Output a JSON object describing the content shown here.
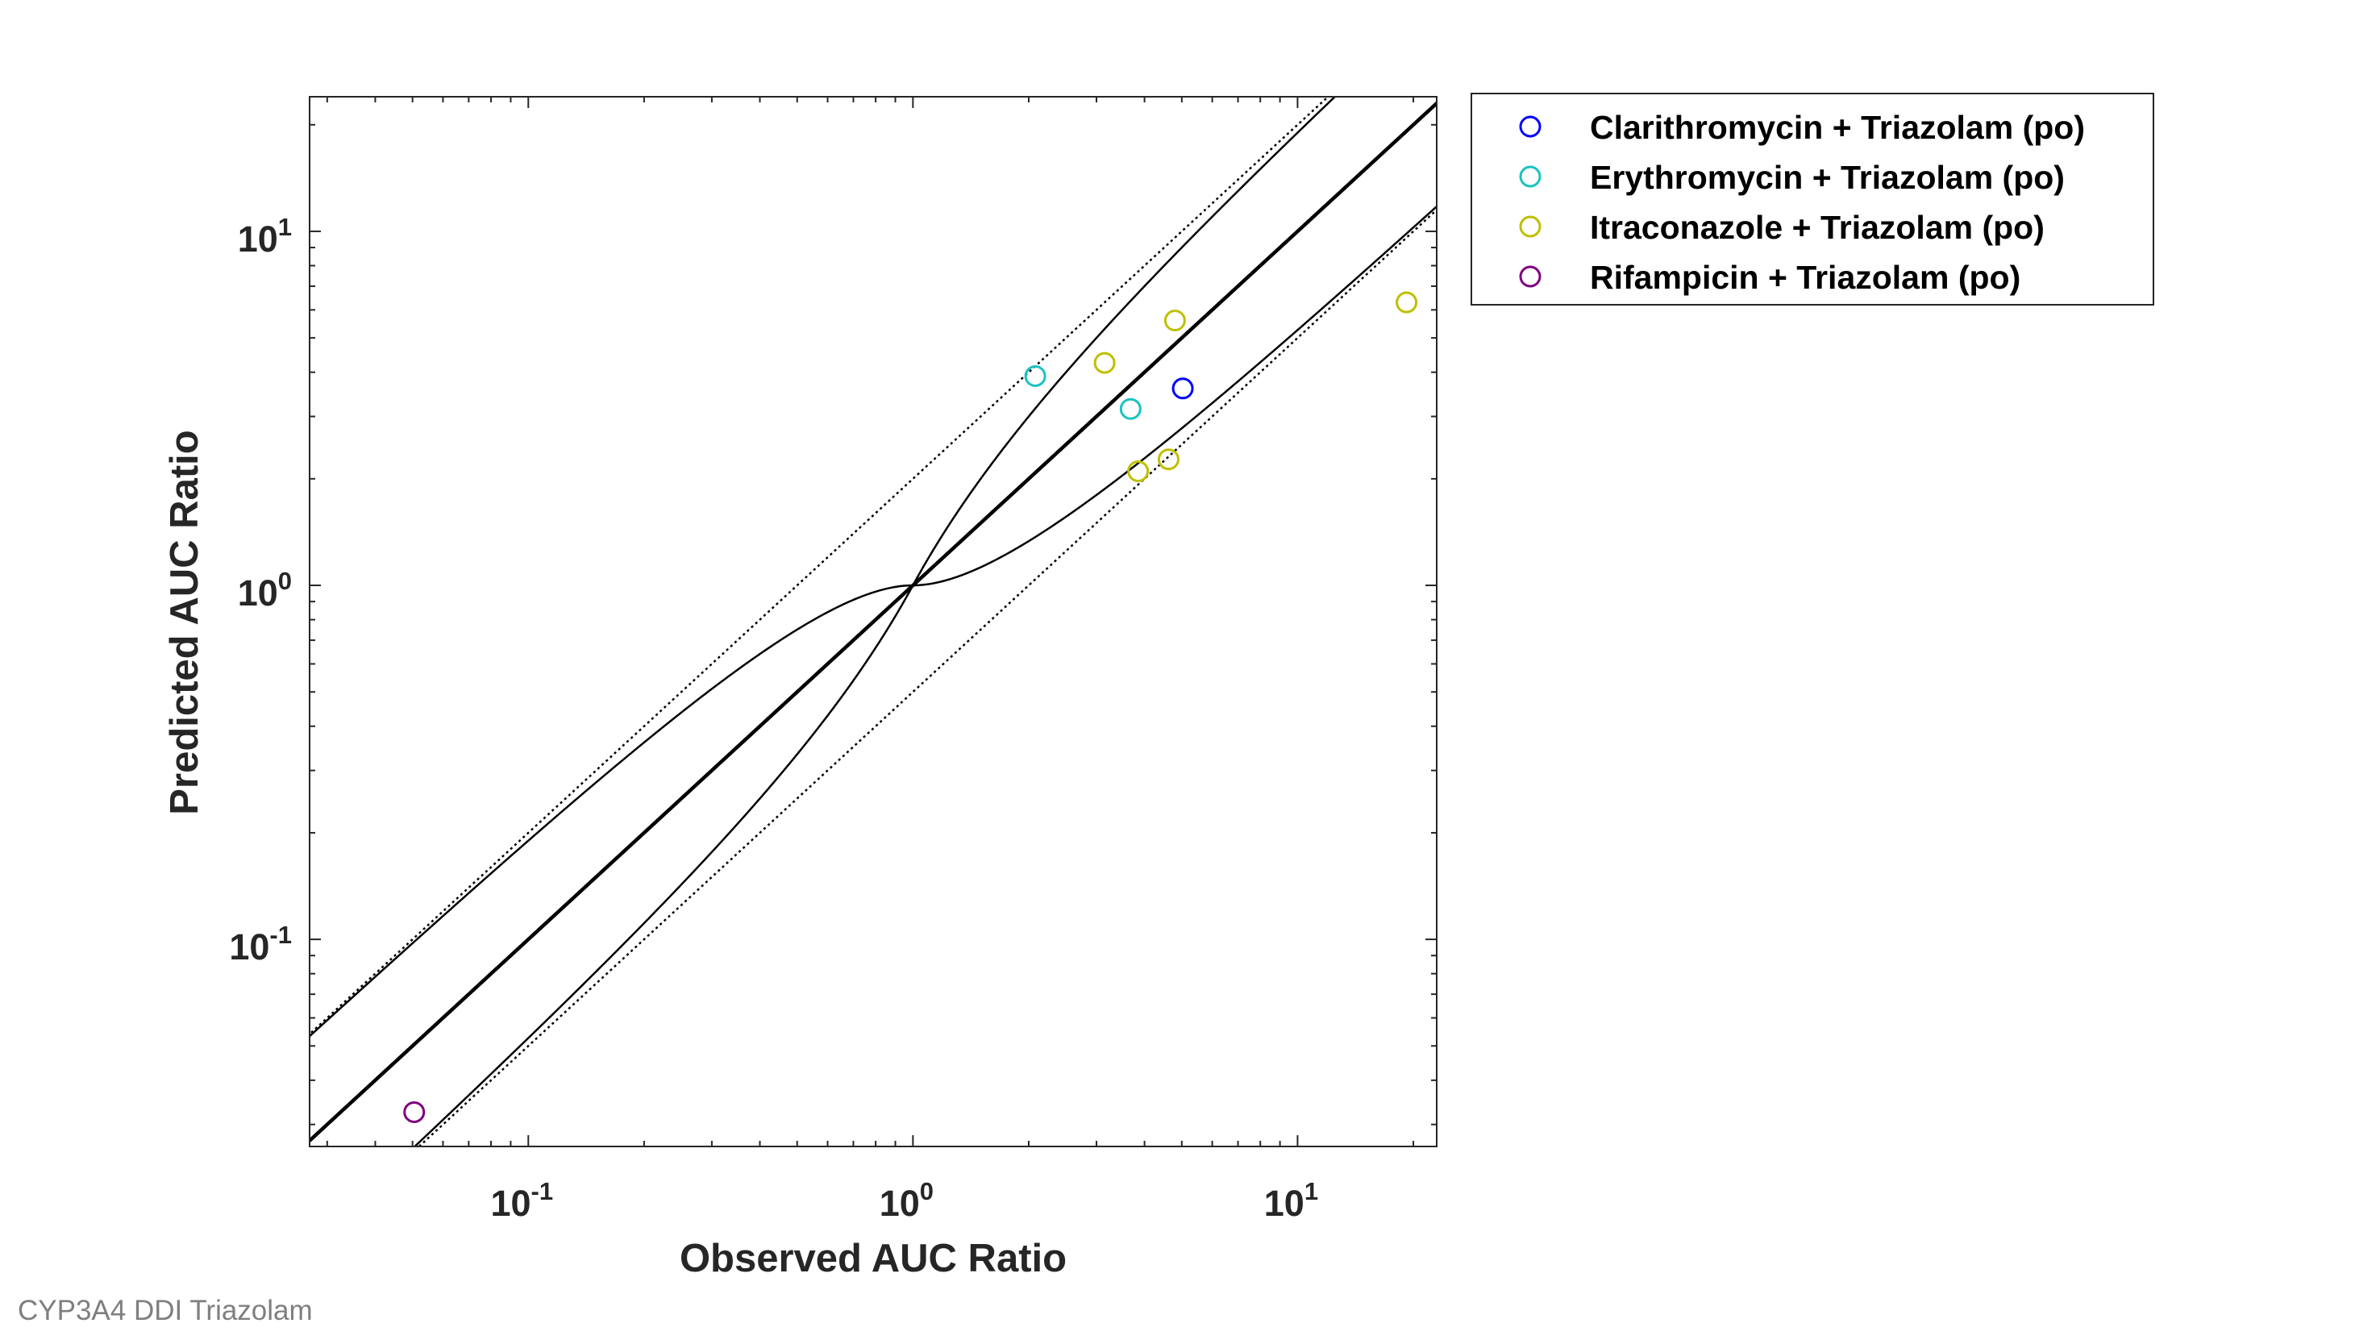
{
  "caption": "CYP3A4 DDI Triazolam",
  "chart_data": {
    "type": "scatter",
    "title": "",
    "xlabel": "Observed AUC Ratio",
    "ylabel": "Predicted AUC Ratio",
    "xscale": "log",
    "yscale": "log",
    "xlim": [
      0.027,
      23
    ],
    "ylim": [
      0.026,
      24
    ],
    "x_ticks": [
      {
        "value": 0.1,
        "base": "10",
        "exp": "-1"
      },
      {
        "value": 1,
        "base": "10",
        "exp": "0"
      },
      {
        "value": 10,
        "base": "10",
        "exp": "1"
      }
    ],
    "y_ticks": [
      {
        "value": 0.1,
        "base": "10",
        "exp": "-1"
      },
      {
        "value": 1,
        "base": "10",
        "exp": "0"
      },
      {
        "value": 10,
        "base": "10",
        "exp": "1"
      }
    ],
    "grid": false,
    "legend_position": "outside-top-right",
    "reference_lines": [
      {
        "kind": "identity",
        "style": "solid-thick"
      },
      {
        "kind": "2-fold",
        "style": "dotted"
      },
      {
        "kind": "guest-limits",
        "style": "solid-thin",
        "delta": 1
      }
    ],
    "series": [
      {
        "name": "Clarithromycin + Triazolam (po)",
        "color": "#0000ff",
        "points": [
          {
            "x": 5.03,
            "y": 3.6
          }
        ]
      },
      {
        "name": "Erythromycin + Triazolam (po)",
        "color": "#19c2c2",
        "points": [
          {
            "x": 2.08,
            "y": 3.9
          },
          {
            "x": 3.68,
            "y": 3.15
          }
        ]
      },
      {
        "name": "Itraconazole + Triazolam (po)",
        "color": "#bfbf00",
        "points": [
          {
            "x": 3.15,
            "y": 4.25
          },
          {
            "x": 4.8,
            "y": 5.6
          },
          {
            "x": 3.85,
            "y": 2.1
          },
          {
            "x": 4.62,
            "y": 2.27
          },
          {
            "x": 19.2,
            "y": 6.3
          }
        ]
      },
      {
        "name": "Rifampicin + Triazolam (po)",
        "color": "#7f007f",
        "points": [
          {
            "x": 0.0505,
            "y": 0.0325
          }
        ]
      }
    ]
  }
}
